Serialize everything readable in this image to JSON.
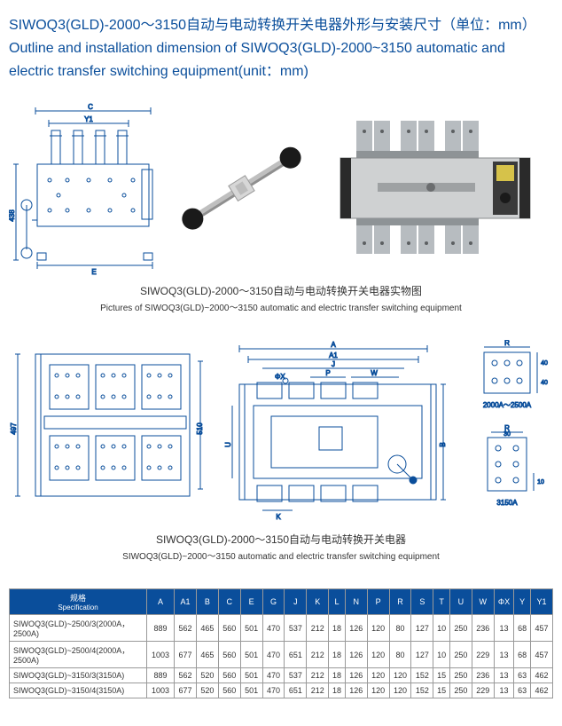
{
  "title_cn": "SIWOQ3(GLD)-2000～3150自动与电动转换开关电器外形与安装尺寸（单位：mm）",
  "title_en": "Outline and installation dimension of SIWOQ3(GLD)-2000~3150 automatic and electric transfer switching equipment(unit：mm)",
  "fig1": {
    "caption_cn": "SIWOQ3(GLD)-2000～3150自动与电动转换开关电器实物图",
    "caption_en": "Pictures of SIWOQ3(GLD)~2000～3150 automatic and electric transfer switching equipment"
  },
  "dim_top": {
    "C": "C",
    "Y1": "Y1",
    "E": "E",
    "v": "438"
  },
  "fig2": {
    "left_h": "497",
    "left_hin": "510",
    "A": "A",
    "A1": "A1",
    "J": "J",
    "P": "P",
    "W": "W",
    "B": "B",
    "U": "U",
    "K": "K",
    "phiX": "ΦX",
    "R": "R",
    "r40a": "40",
    "r40b": "40",
    "rlbl1": "2000A～2500A",
    "r30": "30",
    "r10": "10",
    "rlbl2": "3150A",
    "caption_cn": "SIWOQ3(GLD)-2000～3150自动与电动转换开关电器",
    "caption_en": "SIWOQ3(GLD)~2000～3150 automatic and electric transfer switching equipment"
  },
  "table": {
    "spec_hdr_cn": "规格",
    "spec_hdr_en": "Specification",
    "columns": [
      "A",
      "A1",
      "B",
      "C",
      "E",
      "G",
      "J",
      "K",
      "L",
      "N",
      "P",
      "R",
      "S",
      "T",
      "U",
      "W",
      "ΦX",
      "Y",
      "Y1"
    ],
    "rows": [
      {
        "spec": "SIWOQ3(GLD)~2500/3(2000A，2500A)",
        "v": [
          "889",
          "562",
          "465",
          "560",
          "501",
          "470",
          "537",
          "212",
          "18",
          "126",
          "120",
          "80",
          "127",
          "10",
          "250",
          "236",
          "13",
          "68",
          "457"
        ]
      },
      {
        "spec": "SIWOQ3(GLD)~2500/4(2000A，2500A)",
        "v": [
          "1003",
          "677",
          "465",
          "560",
          "501",
          "470",
          "651",
          "212",
          "18",
          "126",
          "120",
          "80",
          "127",
          "10",
          "250",
          "229",
          "13",
          "68",
          "457"
        ]
      },
      {
        "spec": "SIWOQ3(GLD)~3150/3(3150A)",
        "v": [
          "889",
          "562",
          "520",
          "560",
          "501",
          "470",
          "537",
          "212",
          "18",
          "126",
          "120",
          "120",
          "152",
          "15",
          "250",
          "236",
          "13",
          "63",
          "462"
        ]
      },
      {
        "spec": "SIWOQ3(GLD)~3150/4(3150A)",
        "v": [
          "1003",
          "677",
          "520",
          "560",
          "501",
          "470",
          "651",
          "212",
          "18",
          "126",
          "120",
          "120",
          "152",
          "15",
          "250",
          "229",
          "13",
          "63",
          "462"
        ]
      }
    ]
  },
  "colors": {
    "brand": "#0a4e9b",
    "line": "#0a4e9b",
    "photo_body": "#c9cbcc",
    "photo_dark": "#2a2a2a",
    "photo_copper": "#a68a5e"
  }
}
